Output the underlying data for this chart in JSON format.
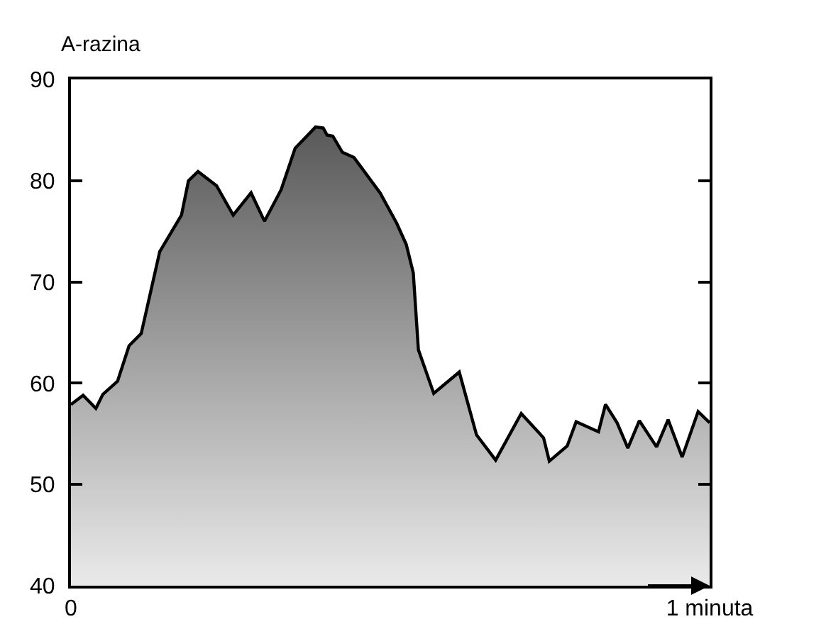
{
  "chart_data": {
    "type": "area",
    "ylabel": "A-razina",
    "x": [
      0,
      0.019,
      0.039,
      0.05,
      0.073,
      0.091,
      0.11,
      0.139,
      0.173,
      0.184,
      0.199,
      0.228,
      0.254,
      0.282,
      0.303,
      0.329,
      0.351,
      0.383,
      0.395,
      0.401,
      0.41,
      0.425,
      0.443,
      0.484,
      0.51,
      0.525,
      0.536,
      0.544,
      0.568,
      0.608,
      0.635,
      0.665,
      0.705,
      0.74,
      0.749,
      0.777,
      0.791,
      0.826,
      0.837,
      0.855,
      0.872,
      0.89,
      0.917,
      0.935,
      0.957,
      0.982,
      1
    ],
    "series": [
      {
        "color": "#000000",
        "values": [
          57.9,
          58.8,
          57.5,
          58.9,
          60.2,
          63.7,
          64.9,
          73.0,
          76.6,
          80.0,
          80.9,
          79.5,
          76.6,
          78.8,
          76.0,
          79.1,
          83.2,
          85.3,
          85.2,
          84.5,
          84.4,
          82.8,
          82.3,
          78.8,
          75.8,
          73.7,
          70.9,
          63.3,
          59.0,
          61.1,
          54.9,
          52.4,
          57.0,
          54.6,
          52.3,
          53.8,
          56.2,
          55.2,
          57.9,
          56.1,
          53.6,
          56.3,
          53.7,
          56.4,
          52.7,
          57.2,
          56.1
        ]
      }
    ],
    "xlim": [
      0,
      1
    ],
    "xticks": [
      {
        "value": 0,
        "label": "0"
      },
      {
        "value": 1,
        "label": "1 minuta"
      }
    ],
    "ylim": [
      40,
      90
    ],
    "yticks": [
      40,
      50,
      60,
      70,
      80,
      90
    ],
    "grid": false,
    "marker": "none",
    "line_style": "solid"
  }
}
